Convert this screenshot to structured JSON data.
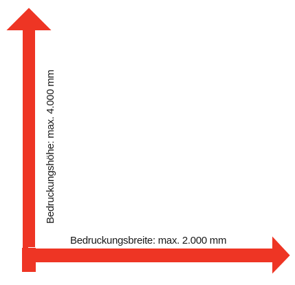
{
  "diagram": {
    "width_label": "Bedruckungsbreite: max. 2.000 mm",
    "height_label": "Bedruckungshöhe: max. 4.000 mm",
    "arrow_color": "#ee3524",
    "arrow_outline_color": "#ffffff"
  }
}
